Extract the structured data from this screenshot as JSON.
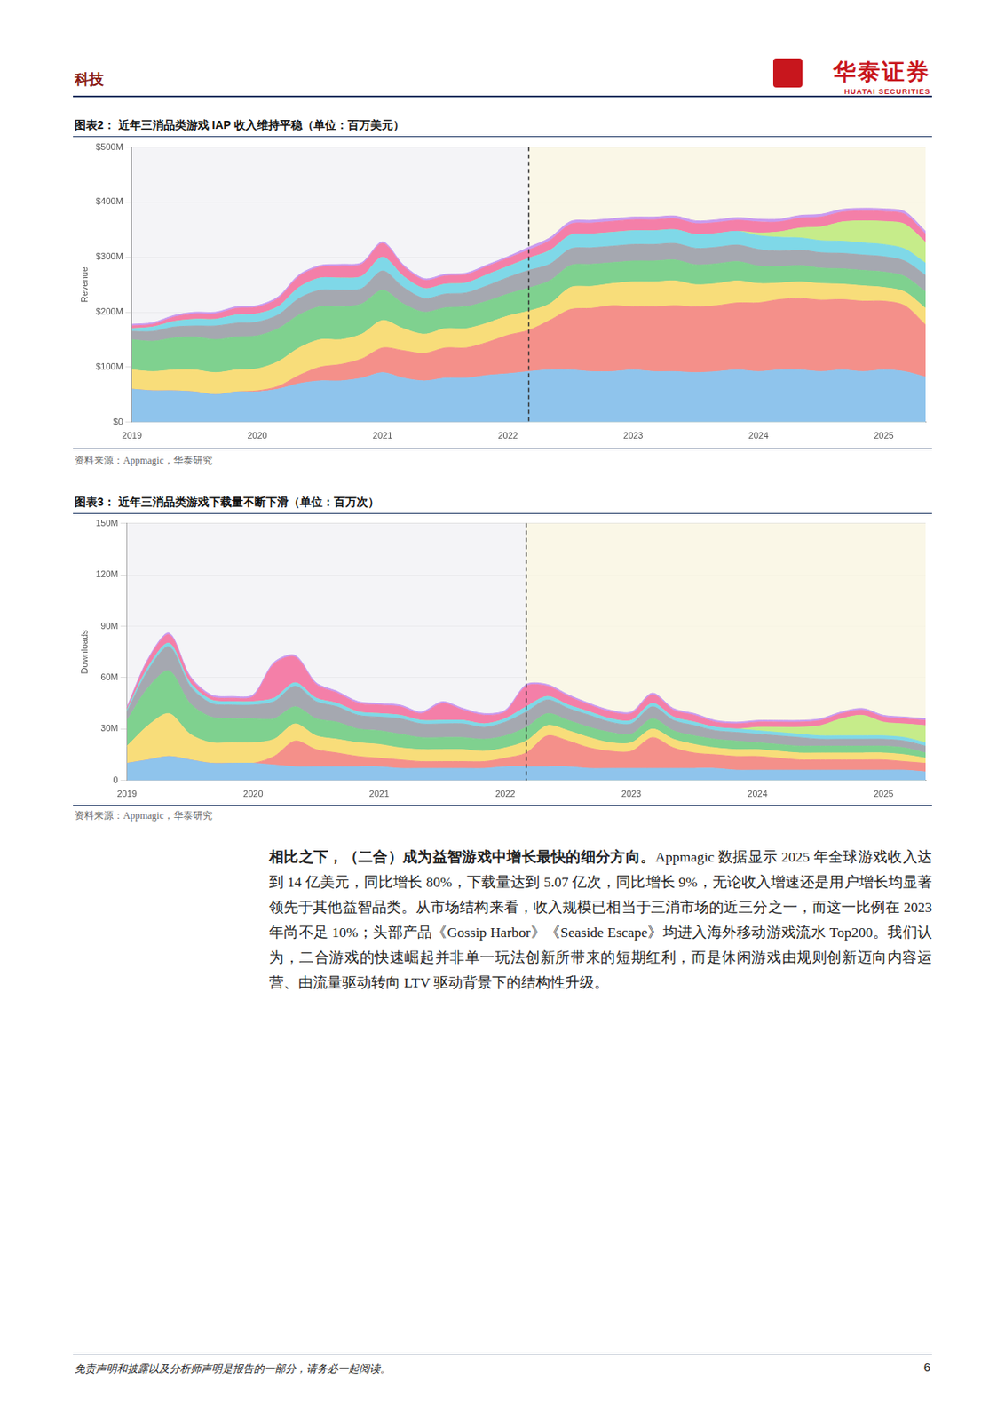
{
  "header": {
    "section": "科技",
    "brand": "华泰证券",
    "brand_en": "HUATAI SECURITIES"
  },
  "chart_data": [
    {
      "type": "area",
      "stacked": true,
      "grid": true,
      "title": "图表2： 近年三消品类游戏 IAP 收入维持平稳（单位：百万美元）",
      "y_label": "Revenue",
      "source": "资料来源：Appmagic，华泰研究",
      "categories": [
        "2019",
        null,
        null,
        null,
        null,
        null,
        "2020",
        null,
        null,
        null,
        null,
        null,
        "2021",
        null,
        null,
        null,
        null,
        null,
        "2022",
        null,
        null,
        null,
        null,
        null,
        "2023",
        null,
        null,
        null,
        null,
        null,
        "2024",
        null,
        null,
        null,
        null,
        null,
        "2025",
        null,
        null
      ],
      "ylim": [
        0,
        500
      ],
      "yticks": [
        {
          "value": 0,
          "label": "$0"
        },
        {
          "value": 100,
          "label": "$100M"
        },
        {
          "value": 200,
          "label": "$200M"
        },
        {
          "value": 300,
          "label": "$300M"
        },
        {
          "value": 400,
          "label": "$400M"
        },
        {
          "value": 500,
          "label": "$500M"
        }
      ],
      "series": [
        {
          "color": "#8fc4ec",
          "values": [
            60,
            57,
            57,
            55,
            50,
            55,
            55,
            60,
            70,
            75,
            75,
            80,
            90,
            80,
            75,
            80,
            80,
            85,
            88,
            92,
            95,
            95,
            92,
            92,
            95,
            92,
            92,
            90,
            92,
            95,
            92,
            95,
            95,
            92,
            95,
            92,
            95,
            92,
            82
          ]
        },
        {
          "color": "#f4908a",
          "values": [
            0,
            0,
            0,
            0,
            0,
            0,
            2,
            5,
            15,
            25,
            30,
            35,
            45,
            50,
            50,
            55,
            55,
            60,
            70,
            75,
            90,
            110,
            115,
            120,
            115,
            118,
            120,
            120,
            120,
            122,
            125,
            128,
            130,
            130,
            128,
            128,
            125,
            120,
            95
          ]
        },
        {
          "color": "#f8dd7a",
          "values": [
            35,
            35,
            38,
            40,
            40,
            40,
            40,
            45,
            50,
            50,
            45,
            45,
            50,
            40,
            35,
            35,
            35,
            35,
            35,
            35,
            30,
            40,
            40,
            40,
            45,
            45,
            45,
            40,
            40,
            40,
            35,
            30,
            30,
            30,
            28,
            28,
            25,
            25,
            30
          ]
        },
        {
          "color": "#7fd18f",
          "values": [
            55,
            55,
            58,
            60,
            60,
            60,
            60,
            60,
            60,
            60,
            60,
            55,
            55,
            45,
            40,
            38,
            40,
            40,
            40,
            42,
            42,
            40,
            40,
            38,
            38,
            38,
            38,
            36,
            36,
            35,
            32,
            30,
            30,
            28,
            28,
            28,
            28,
            28,
            30
          ]
        },
        {
          "color": "#a5a8b0",
          "values": [
            15,
            18,
            20,
            20,
            25,
            25,
            25,
            25,
            30,
            30,
            30,
            28,
            35,
            30,
            25,
            25,
            25,
            28,
            30,
            32,
            30,
            30,
            30,
            30,
            30,
            30,
            30,
            30,
            30,
            30,
            30,
            28,
            28,
            28,
            28,
            28,
            28,
            28,
            30
          ]
        },
        {
          "color": "#7fd8e8",
          "values": [
            5,
            8,
            10,
            12,
            12,
            15,
            15,
            15,
            20,
            22,
            22,
            22,
            25,
            20,
            18,
            18,
            18,
            20,
            20,
            22,
            25,
            25,
            25,
            25,
            25,
            25,
            25,
            25,
            25,
            25,
            25,
            25,
            22,
            22,
            22,
            22,
            22,
            22,
            22
          ]
        },
        {
          "color": "#c6ec8a",
          "values": [
            0,
            0,
            0,
            0,
            0,
            0,
            0,
            0,
            0,
            0,
            0,
            0,
            0,
            0,
            0,
            0,
            0,
            0,
            0,
            0,
            0,
            0,
            0,
            0,
            0,
            0,
            0,
            0,
            0,
            0,
            5,
            10,
            18,
            25,
            35,
            40,
            42,
            45,
            38
          ]
        },
        {
          "color": "#f47fa8",
          "values": [
            5,
            5,
            8,
            10,
            10,
            12,
            12,
            15,
            20,
            20,
            22,
            22,
            25,
            18,
            15,
            15,
            15,
            15,
            15,
            15,
            18,
            20,
            20,
            20,
            20,
            20,
            20,
            20,
            20,
            20,
            20,
            18,
            18,
            18,
            18,
            18,
            18,
            18,
            15
          ]
        },
        {
          "color": "#c99cf0",
          "values": [
            3,
            3,
            3,
            3,
            3,
            3,
            3,
            3,
            3,
            3,
            3,
            3,
            3,
            3,
            3,
            3,
            3,
            3,
            3,
            5,
            5,
            5,
            5,
            5,
            5,
            5,
            5,
            5,
            5,
            5,
            5,
            5,
            5,
            5,
            5,
            5,
            5,
            5,
            5
          ]
        }
      ]
    },
    {
      "type": "area",
      "stacked": true,
      "grid": true,
      "title": "图表3： 近年三消品类游戏下载量不断下滑（单位：百万次）",
      "y_label": "Downloads",
      "source": "资料来源：Appmagic，华泰研究",
      "categories": [
        "2019",
        null,
        null,
        null,
        null,
        null,
        "2020",
        null,
        null,
        null,
        null,
        null,
        "2021",
        null,
        null,
        null,
        null,
        null,
        "2022",
        null,
        null,
        null,
        null,
        null,
        "2023",
        null,
        null,
        null,
        null,
        null,
        "2024",
        null,
        null,
        null,
        null,
        null,
        "2025",
        null,
        null
      ],
      "ylim": [
        0,
        150
      ],
      "yticks": [
        0,
        {
          "value": 30,
          "label": "30M"
        },
        {
          "value": 60,
          "label": "60M"
        },
        {
          "value": 90,
          "label": "90M"
        },
        {
          "value": 120,
          "label": "120M"
        },
        {
          "value": 150,
          "label": "150M"
        }
      ],
      "series": [
        {
          "color": "#8fc4ec",
          "values": [
            10,
            12,
            14,
            12,
            10,
            10,
            10,
            9,
            8,
            8,
            8,
            8,
            8,
            7,
            7,
            7,
            7,
            7,
            8,
            8,
            8,
            8,
            7,
            7,
            7,
            7,
            7,
            7,
            7,
            6,
            6,
            6,
            6,
            6,
            6,
            6,
            6,
            6,
            5
          ]
        },
        {
          "color": "#f4908a",
          "values": [
            0,
            0,
            0,
            0,
            0,
            0,
            0,
            5,
            15,
            10,
            8,
            6,
            5,
            5,
            4,
            4,
            4,
            4,
            5,
            8,
            18,
            15,
            12,
            10,
            10,
            18,
            12,
            9,
            8,
            8,
            8,
            7,
            6,
            6,
            6,
            6,
            6,
            5,
            5
          ]
        },
        {
          "color": "#f8dd7a",
          "values": [
            10,
            20,
            25,
            15,
            12,
            12,
            12,
            10,
            10,
            8,
            8,
            8,
            8,
            7,
            7,
            7,
            7,
            6,
            6,
            7,
            6,
            6,
            6,
            5,
            5,
            5,
            5,
            5,
            4,
            4,
            4,
            4,
            4,
            4,
            4,
            4,
            4,
            4,
            3
          ]
        },
        {
          "color": "#7fd18f",
          "values": [
            15,
            22,
            25,
            18,
            15,
            14,
            14,
            12,
            10,
            10,
            10,
            8,
            8,
            8,
            7,
            7,
            7,
            7,
            7,
            8,
            7,
            6,
            6,
            6,
            5,
            6,
            5,
            5,
            5,
            5,
            4,
            4,
            4,
            4,
            4,
            4,
            4,
            4,
            3
          ]
        },
        {
          "color": "#a5a8b0",
          "values": [
            5,
            10,
            14,
            10,
            8,
            8,
            8,
            10,
            12,
            10,
            9,
            8,
            8,
            9,
            8,
            8,
            8,
            7,
            8,
            9,
            8,
            7,
            7,
            6,
            6,
            7,
            6,
            6,
            5,
            5,
            5,
            5,
            5,
            4,
            4,
            4,
            4,
            4,
            4
          ]
        },
        {
          "color": "#7fd8e8",
          "values": [
            1,
            2,
            2,
            2,
            2,
            2,
            2,
            2,
            2,
            2,
            2,
            2,
            2,
            2,
            2,
            2,
            2,
            2,
            2,
            3,
            2,
            2,
            2,
            2,
            2,
            2,
            2,
            2,
            2,
            2,
            2,
            2,
            2,
            2,
            2,
            2,
            2,
            2,
            2
          ]
        },
        {
          "color": "#c6ec8a",
          "values": [
            0,
            0,
            0,
            0,
            0,
            0,
            0,
            0,
            0,
            0,
            0,
            0,
            0,
            0,
            0,
            0,
            0,
            0,
            0,
            0,
            0,
            0,
            0,
            0,
            0,
            0,
            0,
            0,
            0,
            0,
            2,
            3,
            4,
            6,
            10,
            12,
            8,
            8,
            10
          ]
        },
        {
          "color": "#f47fa8",
          "values": [
            1,
            4,
            5,
            3,
            2,
            2,
            3,
            20,
            15,
            8,
            6,
            5,
            5,
            5,
            4,
            10,
            6,
            5,
            4,
            12,
            6,
            5,
            4,
            4,
            4,
            5,
            4,
            4,
            3,
            3,
            3,
            3,
            3,
            3,
            3,
            3,
            3,
            3,
            3
          ]
        },
        {
          "color": "#c99cf0",
          "values": [
            1,
            1,
            1,
            1,
            1,
            1,
            1,
            1,
            1,
            1,
            1,
            1,
            1,
            1,
            1,
            1,
            1,
            1,
            1,
            1,
            1,
            1,
            1,
            1,
            1,
            1,
            1,
            1,
            1,
            1,
            1,
            1,
            1,
            1,
            1,
            1,
            1,
            1,
            1
          ]
        }
      ]
    }
  ],
  "body": {
    "lead": "相比之下，（二合）成为益智游戏中增长最快的细分方向。",
    "text": "Appmagic 数据显示 2025 年全球游戏收入达到 14 亿美元，同比增长 80%，下载量达到 5.07 亿次，同比增长 9%，无论收入增速还是用户增长均显著领先于其他益智品类。从市场结构来看，收入规模已相当于三消市场的近三分之一，而这一比例在 2023 年尚不足 10%；头部产品《Gossip Harbor》《Seaside Escape》均进入海外移动游戏流水 Top200。我们认为，二合游戏的快速崛起并非单一玩法创新所带来的短期红利，而是休闲游戏由规则创新迈向内容运营、由流量驱动转向 LTV 驱动背景下的结构性升级。"
  },
  "footer": {
    "disclaimer": "免责声明和披露以及分析师声明是报告的一部分，请务必一起阅读。",
    "page": "6"
  }
}
